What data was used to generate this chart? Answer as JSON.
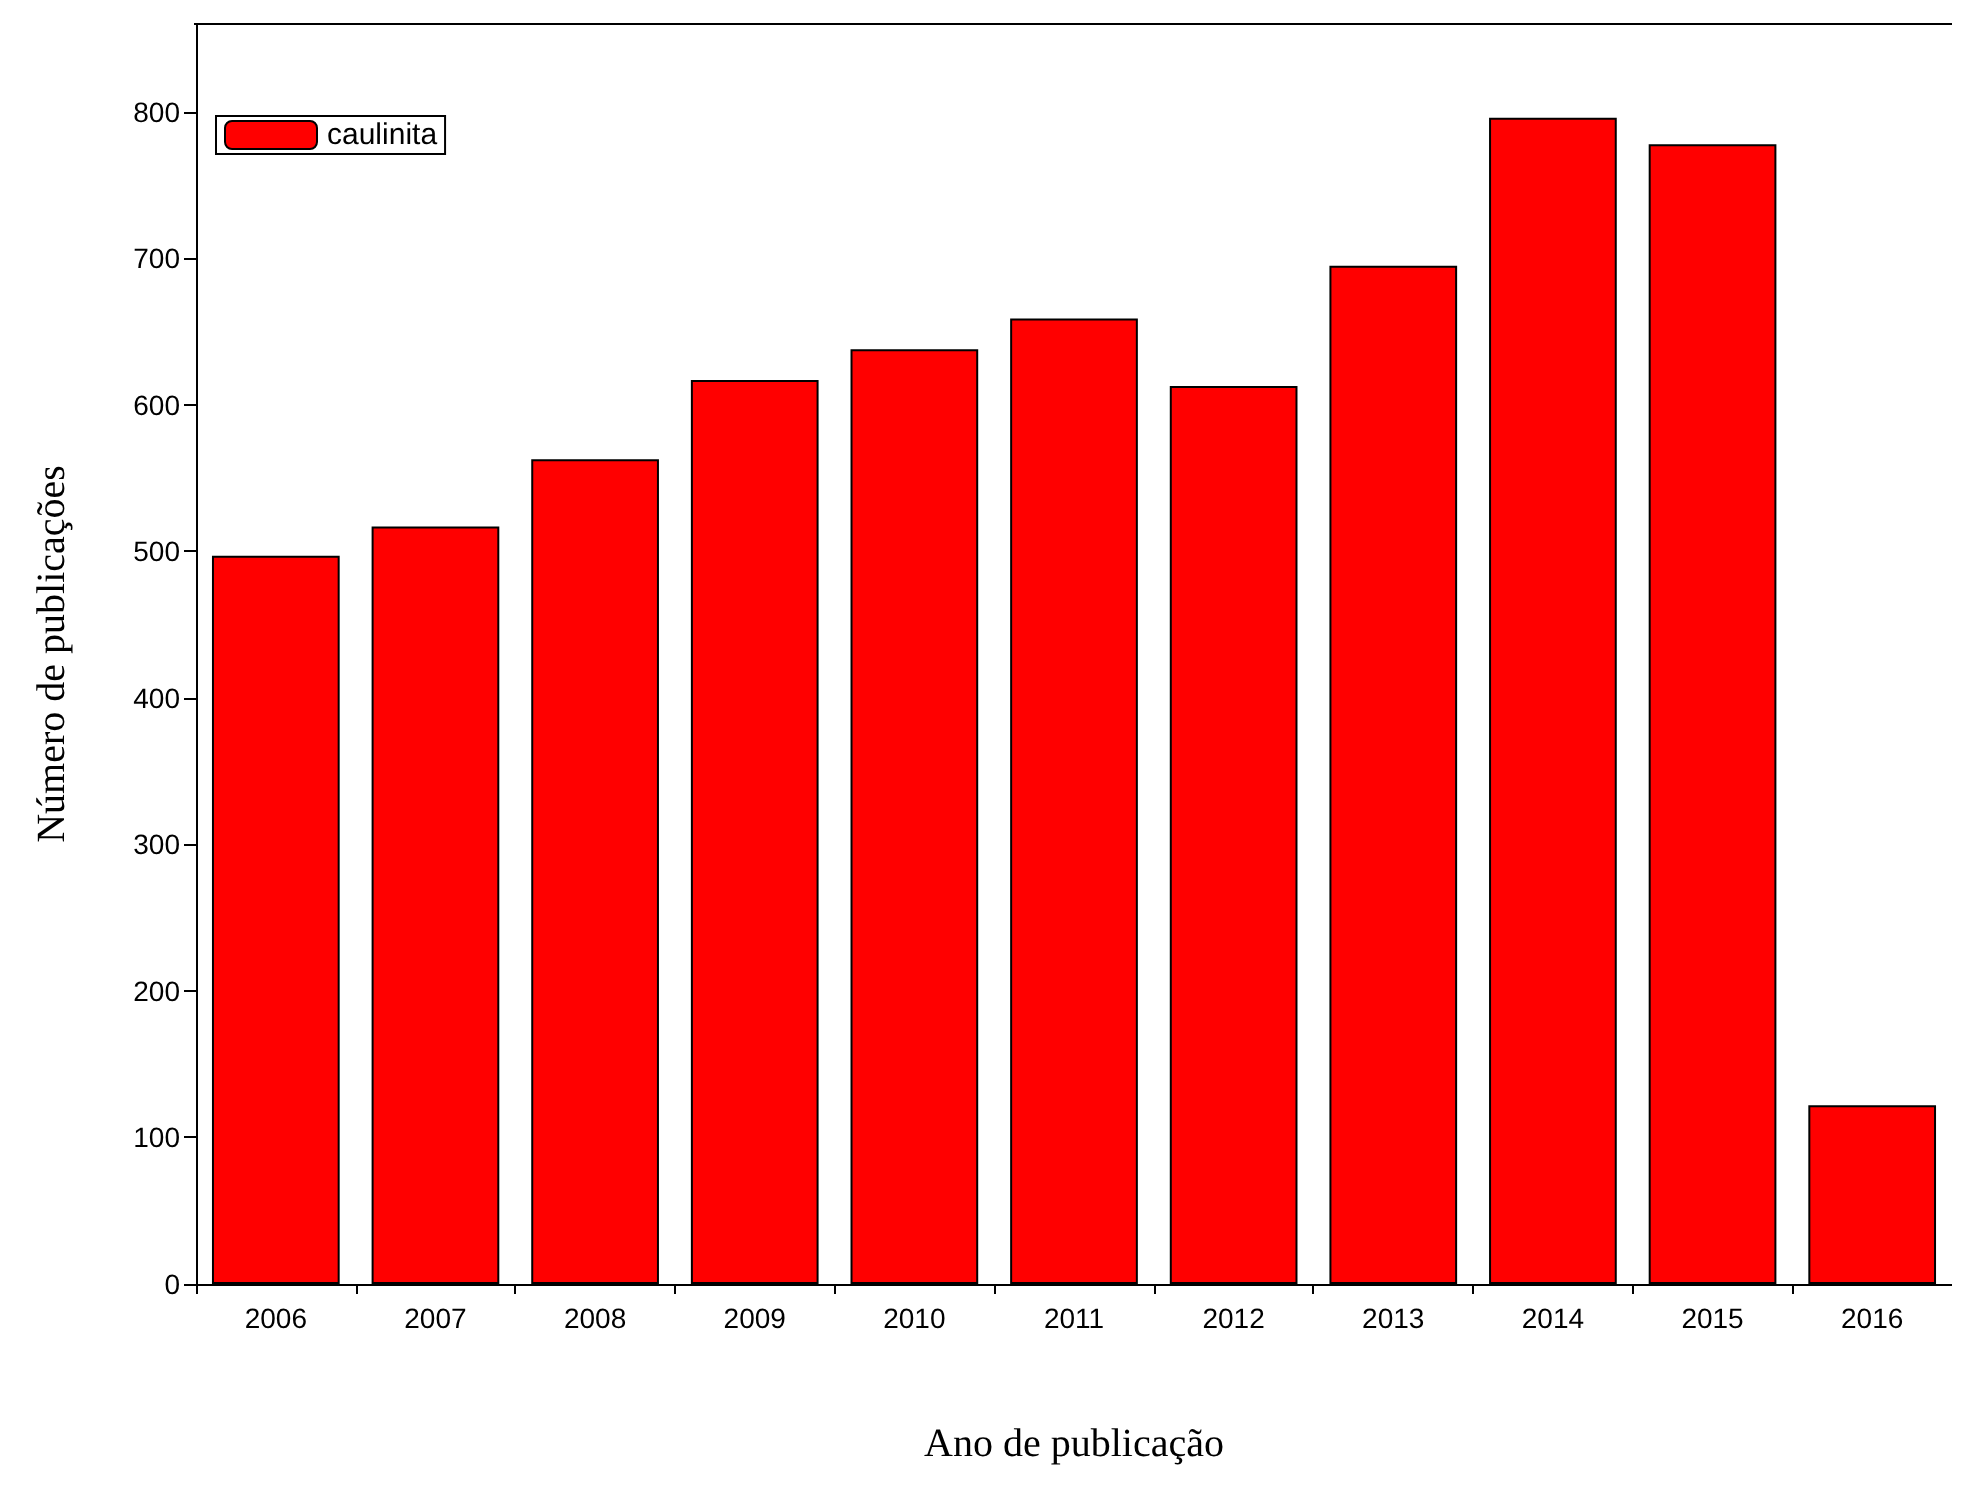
{
  "chart_data": {
    "type": "bar",
    "xlabel": "Ano de publicação",
    "ylabel": "Número de publicações",
    "categories": [
      "2006",
      "2007",
      "2008",
      "2009",
      "2010",
      "2011",
      "2012",
      "2013",
      "2014",
      "2015",
      "2016"
    ],
    "series": [
      {
        "name": "caulinita",
        "color": "#ff0000",
        "values": [
          497,
          517,
          563,
          617,
          638,
          659,
          613,
          695,
          796,
          778,
          122
        ]
      }
    ],
    "ylim": [
      0,
      860
    ],
    "yticks": [
      0,
      100,
      200,
      300,
      400,
      500,
      600,
      700,
      800
    ],
    "grid": false,
    "legend": "top left"
  }
}
